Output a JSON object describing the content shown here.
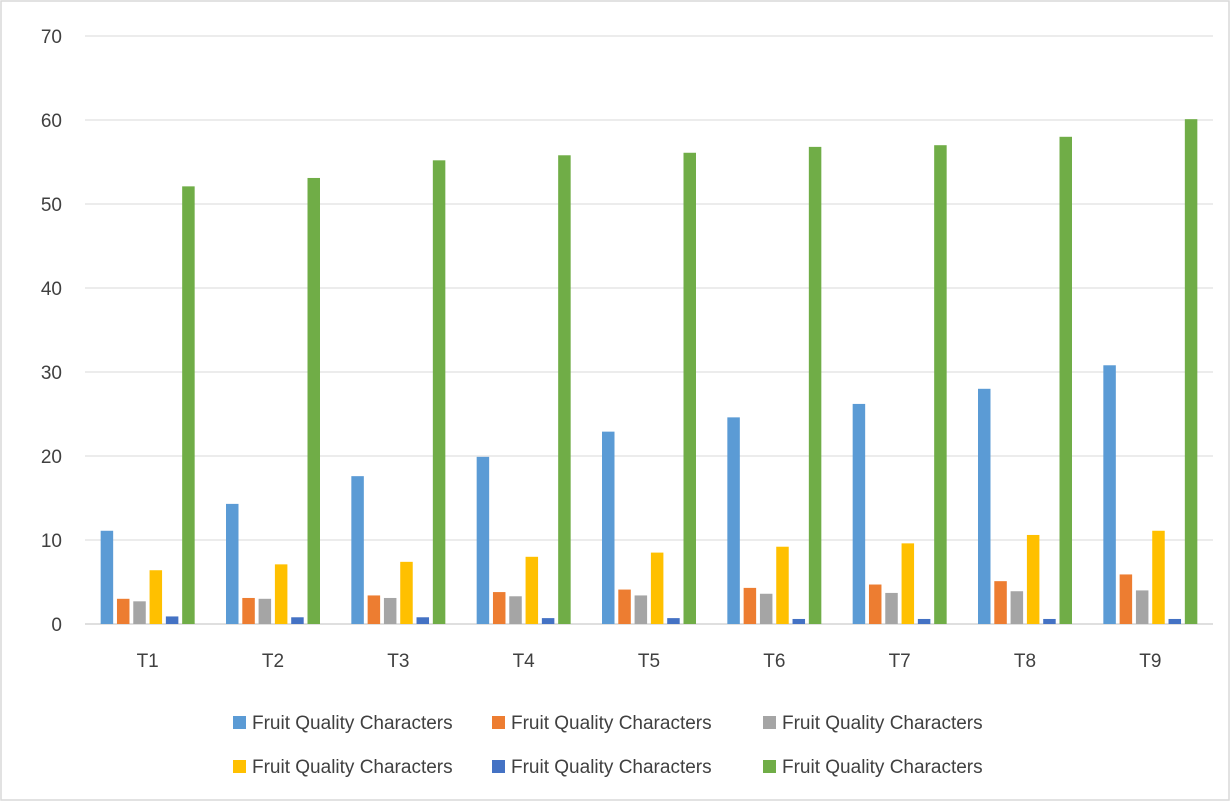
{
  "chart_data": {
    "type": "bar",
    "title": "",
    "xlabel": "",
    "ylabel": "",
    "categories": [
      "T1",
      "T2",
      "T3",
      "T4",
      "T5",
      "T6",
      "T7",
      "T8",
      "T9"
    ],
    "ylim": [
      0,
      70
    ],
    "yticks": [
      0,
      10,
      20,
      30,
      40,
      50,
      60,
      70
    ],
    "grid": true,
    "legend": "bottom",
    "series": [
      {
        "name": "Fruit Quality Characters",
        "color": "#5B9BD5",
        "values": [
          11.1,
          14.3,
          17.6,
          19.9,
          22.9,
          24.6,
          26.2,
          28.0,
          30.8
        ]
      },
      {
        "name": "Fruit Quality Characters",
        "color": "#ED7D31",
        "values": [
          3.0,
          3.1,
          3.4,
          3.8,
          4.1,
          4.3,
          4.7,
          5.1,
          5.9
        ]
      },
      {
        "name": "Fruit Quality Characters",
        "color": "#A5A5A5",
        "values": [
          2.7,
          3.0,
          3.1,
          3.3,
          3.4,
          3.6,
          3.7,
          3.9,
          4.0
        ]
      },
      {
        "name": "Fruit Quality Characters",
        "color": "#FFC000",
        "values": [
          6.4,
          7.1,
          7.4,
          8.0,
          8.5,
          9.2,
          9.6,
          10.6,
          11.1
        ]
      },
      {
        "name": "Fruit Quality Characters",
        "color": "#4472C4",
        "values": [
          0.9,
          0.8,
          0.8,
          0.7,
          0.7,
          0.6,
          0.6,
          0.6,
          0.6
        ]
      },
      {
        "name": "Fruit Quality Characters",
        "color": "#70AD47",
        "values": [
          52.1,
          53.1,
          55.2,
          55.8,
          56.1,
          56.8,
          57.0,
          58.0,
          60.1
        ]
      }
    ]
  }
}
